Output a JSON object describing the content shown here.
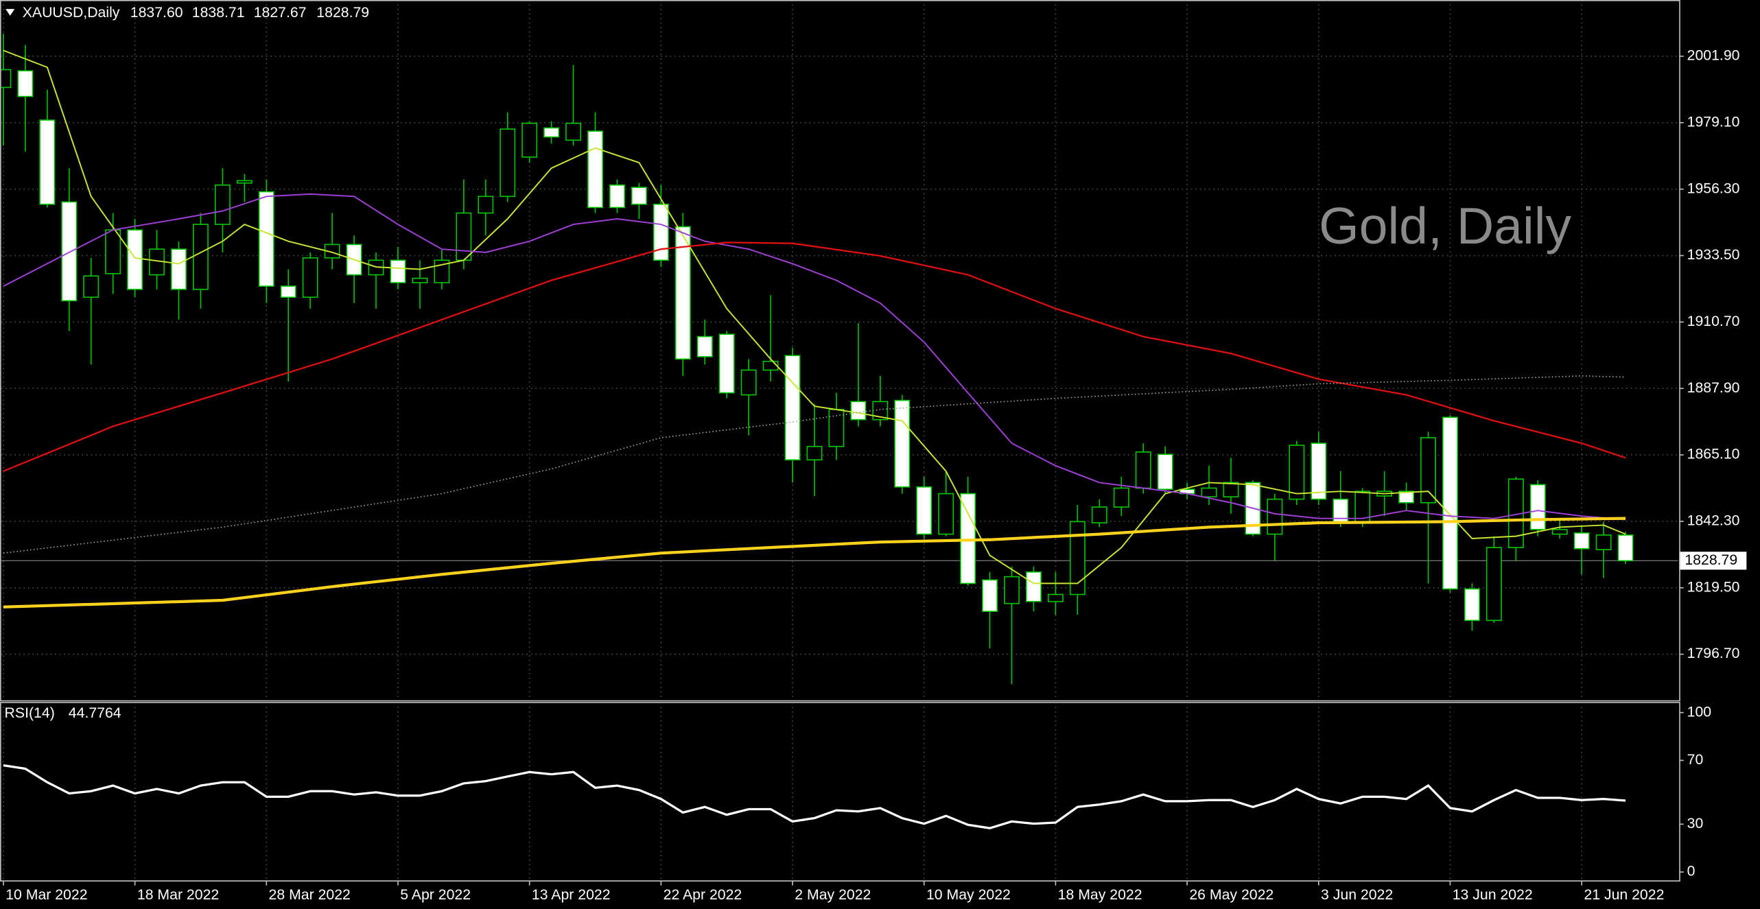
{
  "chart_data": {
    "type": "candlestick",
    "symbol": "XAUUSD,Daily",
    "ohlc_labels": [
      "1837.60",
      "1838.71",
      "1827.67",
      "1828.79"
    ],
    "watermark": "Gold, Daily",
    "categories": [
      "10 Mar 2022",
      null,
      null,
      null,
      null,
      null,
      "18 Mar 2022",
      null,
      null,
      null,
      null,
      null,
      "28 Mar 2022",
      null,
      null,
      null,
      null,
      null,
      "5 Apr 2022",
      null,
      null,
      null,
      null,
      null,
      "13 Apr 2022",
      null,
      null,
      null,
      null,
      null,
      "22 Apr 2022",
      null,
      null,
      null,
      null,
      null,
      "2 May 2022",
      null,
      null,
      null,
      null,
      null,
      "10 May 2022",
      null,
      null,
      null,
      null,
      null,
      "18 May 2022",
      null,
      null,
      null,
      null,
      null,
      "26 May 2022",
      null,
      null,
      null,
      null,
      null,
      "3 Jun 2022",
      null,
      null,
      null,
      null,
      null,
      "13 Jun 2022",
      null,
      null,
      null,
      null,
      null,
      "21 Jun 2022",
      null,
      null
    ],
    "open": [
      1991.2,
      1996.9,
      1980.0,
      1951.9,
      1919.2,
      1927.3,
      1942.3,
      1926.9,
      1935.7,
      1921.9,
      1944.2,
      1958.4,
      1955.4,
      1923.0,
      1919.2,
      1932.7,
      1937.3,
      1926.9,
      1931.9,
      1924.2,
      1924.2,
      1931.9,
      1948.1,
      1953.8,
      1967.3,
      1977.3,
      1973.1,
      1976.2,
      1957.7,
      1956.9,
      1951.1,
      1943.4,
      1905.7,
      1906.5,
      1885.7,
      1894.2,
      1899.2,
      1863.4,
      1868.0,
      1883.4,
      1877.2,
      1883.8,
      1854.1,
      1837.9,
      1851.8,
      1822.2,
      1814.1,
      1824.9,
      1814.8,
      1817.2,
      1841.8,
      1847.2,
      1853.7,
      1865.3,
      1853.3,
      1850.7,
      1850.7,
      1855.6,
      1837.9,
      1849.9,
      1869.1,
      1849.9,
      1842.2,
      1851.0,
      1852.6,
      1848.7,
      1878.0,
      1819.1,
      1808.3,
      1833.3,
      1854.9,
      1837.9,
      1838.3,
      1832.6,
      1837.6
    ],
    "high": [
      2009.6,
      2005.8,
      1990.4,
      1963.5,
      1932.7,
      1948.1,
      1946.1,
      1942.3,
      1938.4,
      1948.1,
      1963.5,
      1961.5,
      1959.6,
      1928.8,
      1934.6,
      1948.1,
      1940.4,
      1934.6,
      1936.5,
      1931.9,
      1935.7,
      1959.6,
      1959.6,
      1982.7,
      1979.6,
      1979.6,
      1998.9,
      1982.7,
      1959.6,
      1958.4,
      1957.7,
      1948.1,
      1911.5,
      1907.6,
      1898.0,
      1919.9,
      1901.9,
      1882.6,
      1886.4,
      1910.3,
      1892.2,
      1885.7,
      1857.6,
      1859.5,
      1857.6,
      1824.9,
      1826.8,
      1826.8,
      1824.9,
      1847.9,
      1849.9,
      1857.6,
      1869.1,
      1868.0,
      1855.6,
      1861.4,
      1864.1,
      1856.4,
      1851.8,
      1869.9,
      1873.0,
      1859.5,
      1853.7,
      1859.5,
      1855.6,
      1873.0,
      1878.8,
      1821.0,
      1837.2,
      1857.6,
      1856.4,
      1843.3,
      1841.0,
      1842.2,
      1838.71
    ],
    "low": [
      1971.2,
      1969.2,
      1950.0,
      1907.6,
      1896.1,
      1920.3,
      1919.2,
      1921.9,
      1911.5,
      1915.3,
      1934.6,
      1951.9,
      1917.2,
      1890.3,
      1915.3,
      1928.8,
      1917.2,
      1915.3,
      1921.9,
      1915.3,
      1921.9,
      1928.8,
      1940.4,
      1951.9,
      1965.4,
      1971.9,
      1971.2,
      1948.1,
      1948.1,
      1946.1,
      1929.6,
      1892.2,
      1896.1,
      1884.5,
      1871.8,
      1890.3,
      1855.6,
      1851.0,
      1863.4,
      1874.9,
      1874.9,
      1851.8,
      1836.4,
      1837.2,
      1820.2,
      1798.7,
      1786.4,
      1811.4,
      1810.2,
      1810.2,
      1840.3,
      1844.1,
      1851.8,
      1851.8,
      1849.9,
      1847.9,
      1844.9,
      1837.2,
      1828.7,
      1847.9,
      1847.9,
      1840.3,
      1840.3,
      1844.1,
      1846.0,
      1821.0,
      1817.9,
      1804.8,
      1807.5,
      1828.7,
      1837.2,
      1836.4,
      1824.1,
      1822.9,
      1827.67
    ],
    "close": [
      1997.3,
      1988.1,
      1951.1,
      1918.0,
      1926.5,
      1942.3,
      1921.9,
      1935.7,
      1921.9,
      1944.2,
      1957.7,
      1959.2,
      1923.0,
      1919.2,
      1932.7,
      1937.3,
      1926.9,
      1931.9,
      1924.2,
      1925.7,
      1931.9,
      1948.1,
      1953.8,
      1976.9,
      1978.9,
      1974.2,
      1978.9,
      1950.0,
      1950.0,
      1951.1,
      1931.9,
      1898.0,
      1898.8,
      1886.4,
      1894.2,
      1897.2,
      1863.4,
      1868.0,
      1880.7,
      1877.2,
      1883.4,
      1854.1,
      1837.9,
      1851.8,
      1821.0,
      1811.4,
      1823.3,
      1814.8,
      1817.2,
      1842.2,
      1847.2,
      1853.7,
      1866.1,
      1853.3,
      1851.8,
      1853.7,
      1855.6,
      1837.9,
      1849.9,
      1868.4,
      1849.9,
      1842.2,
      1852.6,
      1852.6,
      1848.7,
      1871.0,
      1819.1,
      1808.3,
      1833.3,
      1856.8,
      1839.5,
      1839.5,
      1832.9,
      1837.6,
      1828.79
    ],
    "ylim": [
      1780.9,
      2021.2
    ],
    "yticks": [
      {
        "value": 2001.9,
        "label": "2001.90"
      },
      {
        "value": 1979.1,
        "label": "1979.10"
      },
      {
        "value": 1956.3,
        "label": "1956.30"
      },
      {
        "value": 1933.5,
        "label": "1933.50"
      },
      {
        "value": 1910.7,
        "label": "1910.70"
      },
      {
        "value": 1887.9,
        "label": "1887.90"
      },
      {
        "value": 1865.1,
        "label": "1865.10"
      },
      {
        "value": 1842.3,
        "label": "1842.30"
      },
      {
        "value": 1819.5,
        "label": "1819.50"
      },
      {
        "value": 1796.7,
        "label": "1796.70"
      }
    ],
    "price_label": {
      "value": 1828.79,
      "label": "1828.79"
    },
    "grid": true,
    "colors": {
      "bull_body": "#000000",
      "bear_body": "#ffffff",
      "wick": "#00c800"
    },
    "moving_averages": [
      {
        "color": "#c8e632",
        "width": 1.2,
        "dashed": false,
        "x": [
          0,
          2,
          4,
          6,
          8,
          10,
          11,
          13,
          15,
          17,
          19,
          21,
          23,
          25,
          27,
          29,
          31,
          33,
          35,
          37,
          39,
          41,
          43,
          45,
          47,
          49,
          51,
          53,
          55,
          57,
          59,
          61,
          63,
          65,
          67,
          69,
          71,
          73,
          74
        ],
        "values": [
          2003.9,
          1998.1,
          1953.8,
          1932.7,
          1930.7,
          1938.4,
          1944.2,
          1938.4,
          1934.6,
          1929.6,
          1928.8,
          1931.9,
          1946.1,
          1963.5,
          1970.4,
          1965.4,
          1940.4,
          1915.3,
          1898.0,
          1881.8,
          1879.5,
          1876.8,
          1859.5,
          1830.6,
          1821.0,
          1821.0,
          1833.3,
          1851.8,
          1855.6,
          1854.9,
          1851.8,
          1852.6,
          1851.8,
          1852.6,
          1836.4,
          1837.2,
          1840.3,
          1841.0,
          1837.9
        ]
      },
      {
        "color": "#a040d8",
        "width": 1.2,
        "dashed": false,
        "x": [
          0,
          3,
          5,
          8,
          10,
          12,
          14,
          16,
          18,
          20,
          22,
          24,
          26,
          28,
          30,
          32,
          34,
          36,
          38,
          40,
          42,
          44,
          46,
          48,
          50,
          52,
          54,
          56,
          58,
          60,
          62,
          64,
          66,
          68,
          70,
          72,
          74
        ],
        "values": [
          1923.0,
          1934.6,
          1942.3,
          1946.1,
          1948.8,
          1953.8,
          1954.6,
          1953.8,
          1944.2,
          1935.7,
          1934.6,
          1938.4,
          1944.2,
          1946.1,
          1944.2,
          1938.4,
          1935.7,
          1930.7,
          1925.0,
          1917.2,
          1903.8,
          1886.4,
          1869.1,
          1861.4,
          1855.6,
          1853.7,
          1851.8,
          1848.7,
          1844.9,
          1843.3,
          1843.3,
          1846.0,
          1844.1,
          1843.3,
          1846.0,
          1844.1,
          1842.9
        ]
      },
      {
        "color": "#e01010",
        "width": 1.4,
        "dashed": false,
        "x": [
          0,
          5,
          10,
          15,
          20,
          25,
          30,
          33,
          36,
          40,
          44,
          48,
          52,
          56,
          60,
          64,
          68,
          72,
          74
        ],
        "values": [
          1859.5,
          1874.9,
          1886.4,
          1898.0,
          1911.5,
          1925.0,
          1935.7,
          1938.0,
          1937.7,
          1933.4,
          1926.9,
          1915.3,
          1905.7,
          1899.9,
          1891.1,
          1885.7,
          1876.8,
          1869.1,
          1864.1
        ]
      },
      {
        "color": "#a0a0a0",
        "width": 1,
        "dashed": true,
        "x": [
          0,
          10,
          20,
          25,
          30,
          36,
          40,
          48,
          56,
          60,
          66,
          72,
          74
        ],
        "values": [
          1831.4,
          1840.3,
          1851.8,
          1860.3,
          1871.0,
          1876.4,
          1880.7,
          1884.5,
          1887.6,
          1889.5,
          1890.7,
          1892.2,
          1891.8
        ]
      },
      {
        "color": "#ffd21e",
        "width": 2.6,
        "dashed": false,
        "x": [
          0,
          10,
          15,
          20,
          25,
          30,
          36,
          40,
          45,
          50,
          55,
          60,
          66,
          70,
          74
        ],
        "values": [
          1812.9,
          1815.2,
          1819.9,
          1824.1,
          1827.9,
          1831.4,
          1833.7,
          1835.2,
          1836.0,
          1837.9,
          1840.3,
          1841.8,
          1842.2,
          1842.9,
          1843.3
        ]
      }
    ],
    "rsi": {
      "type": "line",
      "title": "RSI(14)",
      "color": "#ffffff",
      "values": [
        66.9,
        64.8,
        56.3,
        49.3,
        50.7,
        54.2,
        49.3,
        52.1,
        49.3,
        54.2,
        56.3,
        56.3,
        47.2,
        47.2,
        50.7,
        50.7,
        48.6,
        50.0,
        47.9,
        47.9,
        50.7,
        55.6,
        57.0,
        59.9,
        62.7,
        61.3,
        62.7,
        52.8,
        54.2,
        51.4,
        45.8,
        37.3,
        40.8,
        35.9,
        39.4,
        39.4,
        31.7,
        33.8,
        38.7,
        38.0,
        40.1,
        33.8,
        30.3,
        35.2,
        29.6,
        27.5,
        31.7,
        30.3,
        31.0,
        40.8,
        42.3,
        44.4,
        48.6,
        44.4,
        44.4,
        45.1,
        45.1,
        40.8,
        45.1,
        52.1,
        45.8,
        43.0,
        47.2,
        47.2,
        45.8,
        54.2,
        40.1,
        38.0,
        45.1,
        51.4,
        46.5,
        46.5,
        45.1,
        45.8,
        44.7764
      ],
      "ylim": [
        -5.6,
        106.3
      ],
      "yticks": [
        100,
        70,
        30,
        0
      ]
    }
  }
}
